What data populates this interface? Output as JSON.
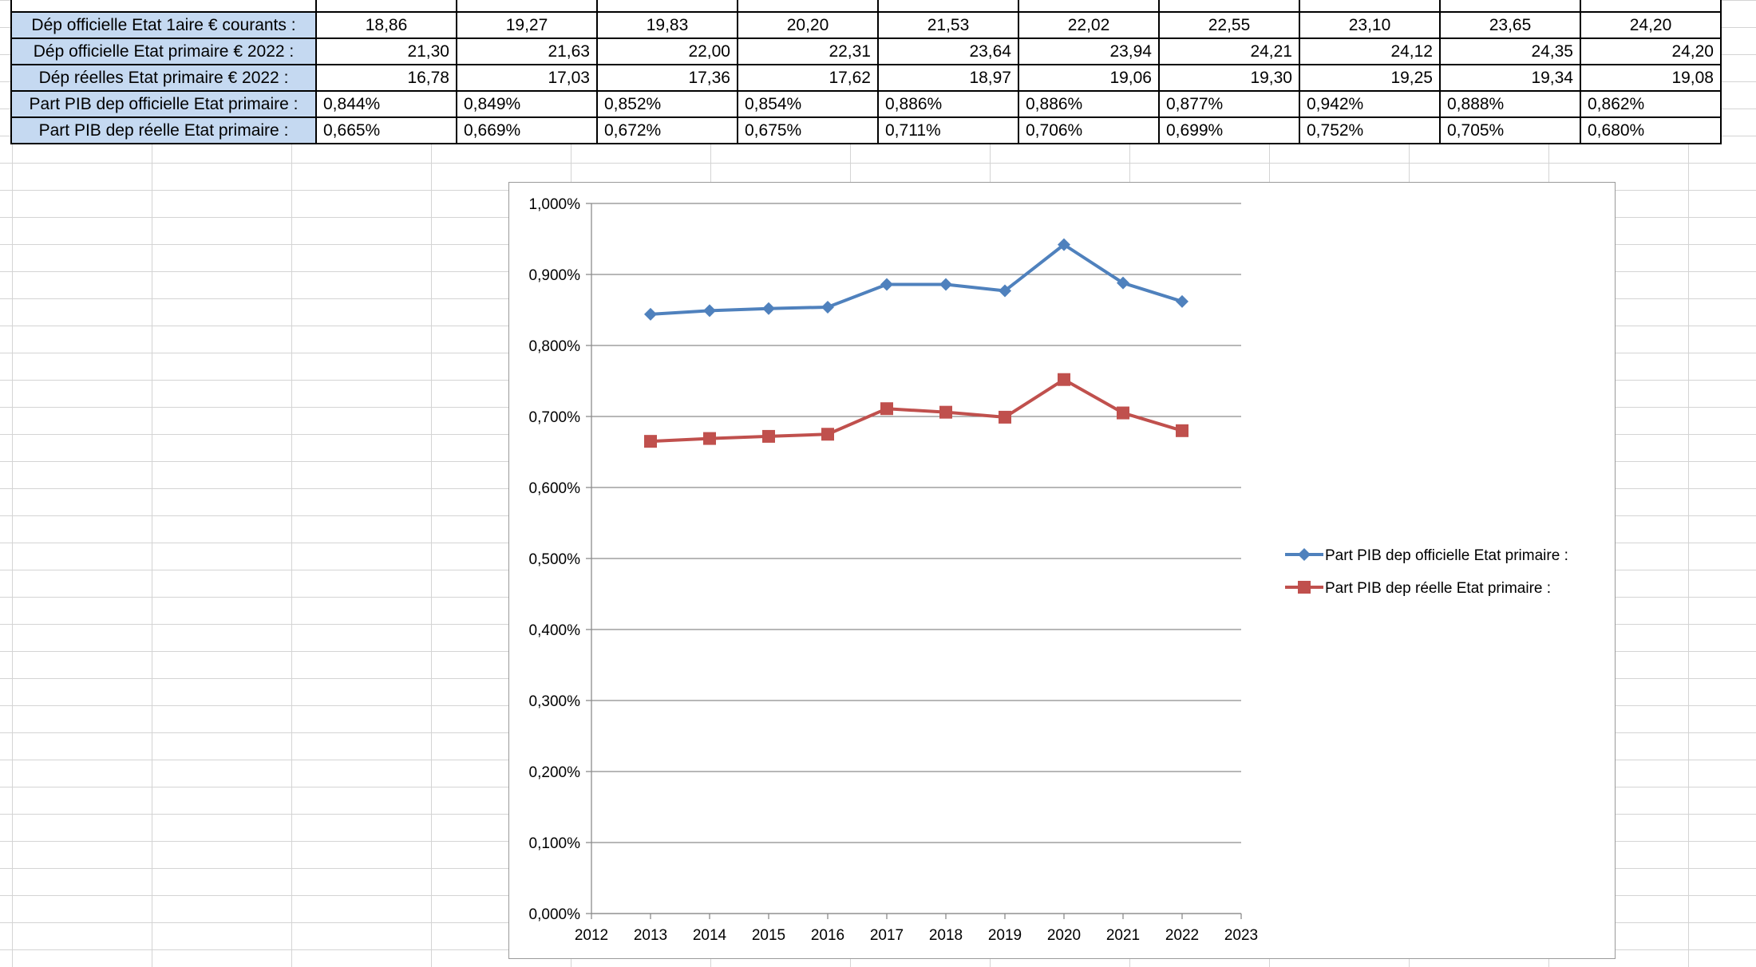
{
  "table": {
    "top_row_cells": [
      "",
      "",
      "",
      "",
      "",
      "",
      "",
      "",
      "",
      "",
      ""
    ],
    "rows": [
      {
        "label": "Dép officielle Etat 1aire € courants :",
        "align": "c",
        "values": [
          "18,86",
          "19,27",
          "19,83",
          "20,20",
          "21,53",
          "22,02",
          "22,55",
          "23,10",
          "23,65",
          "24,20"
        ]
      },
      {
        "label": "Dép officielle Etat primaire € 2022 :",
        "align": "r",
        "values": [
          "21,30",
          "21,63",
          "22,00",
          "22,31",
          "23,64",
          "23,94",
          "24,21",
          "24,12",
          "24,35",
          "24,20"
        ]
      },
      {
        "label": "Dép réelles Etat primaire € 2022 :",
        "align": "r",
        "values": [
          "16,78",
          "17,03",
          "17,36",
          "17,62",
          "18,97",
          "19,06",
          "19,30",
          "19,25",
          "19,34",
          "19,08"
        ]
      },
      {
        "label": "Part PIB dep officielle Etat primaire :",
        "align": "l",
        "values": [
          "0,844%",
          "0,849%",
          "0,852%",
          "0,854%",
          "0,886%",
          "0,886%",
          "0,877%",
          "0,942%",
          "0,888%",
          "0,862%"
        ]
      },
      {
        "label": "Part PIB dep réelle Etat primaire :",
        "align": "l",
        "values": [
          "0,665%",
          "0,669%",
          "0,672%",
          "0,675%",
          "0,711%",
          "0,706%",
          "0,699%",
          "0,752%",
          "0,705%",
          "0,680%"
        ]
      }
    ]
  },
  "chart_data": {
    "type": "line",
    "title": "",
    "xlabel": "",
    "ylabel": "",
    "xlim": [
      2012,
      2023
    ],
    "ylim": [
      0,
      1.0
    ],
    "x_ticks": [
      "2012",
      "2013",
      "2014",
      "2015",
      "2016",
      "2017",
      "2018",
      "2019",
      "2020",
      "2021",
      "2022",
      "2023"
    ],
    "y_ticks": [
      "0,000%",
      "0,100%",
      "0,200%",
      "0,300%",
      "0,400%",
      "0,500%",
      "0,600%",
      "0,700%",
      "0,800%",
      "0,900%",
      "1,000%"
    ],
    "grid": true,
    "legend_position": "right",
    "x": [
      2013,
      2014,
      2015,
      2016,
      2017,
      2018,
      2019,
      2020,
      2021,
      2022
    ],
    "series": [
      {
        "name": "Part PIB dep officielle Etat primaire :",
        "color": "#4f81bd",
        "marker": "diamond",
        "values": [
          0.844,
          0.849,
          0.852,
          0.854,
          0.886,
          0.886,
          0.877,
          0.942,
          0.888,
          0.862
        ]
      },
      {
        "name": "Part PIB dep réelle Etat primaire :",
        "color": "#c0504d",
        "marker": "square",
        "values": [
          0.665,
          0.669,
          0.672,
          0.675,
          0.711,
          0.706,
          0.699,
          0.752,
          0.705,
          0.68
        ]
      }
    ]
  }
}
